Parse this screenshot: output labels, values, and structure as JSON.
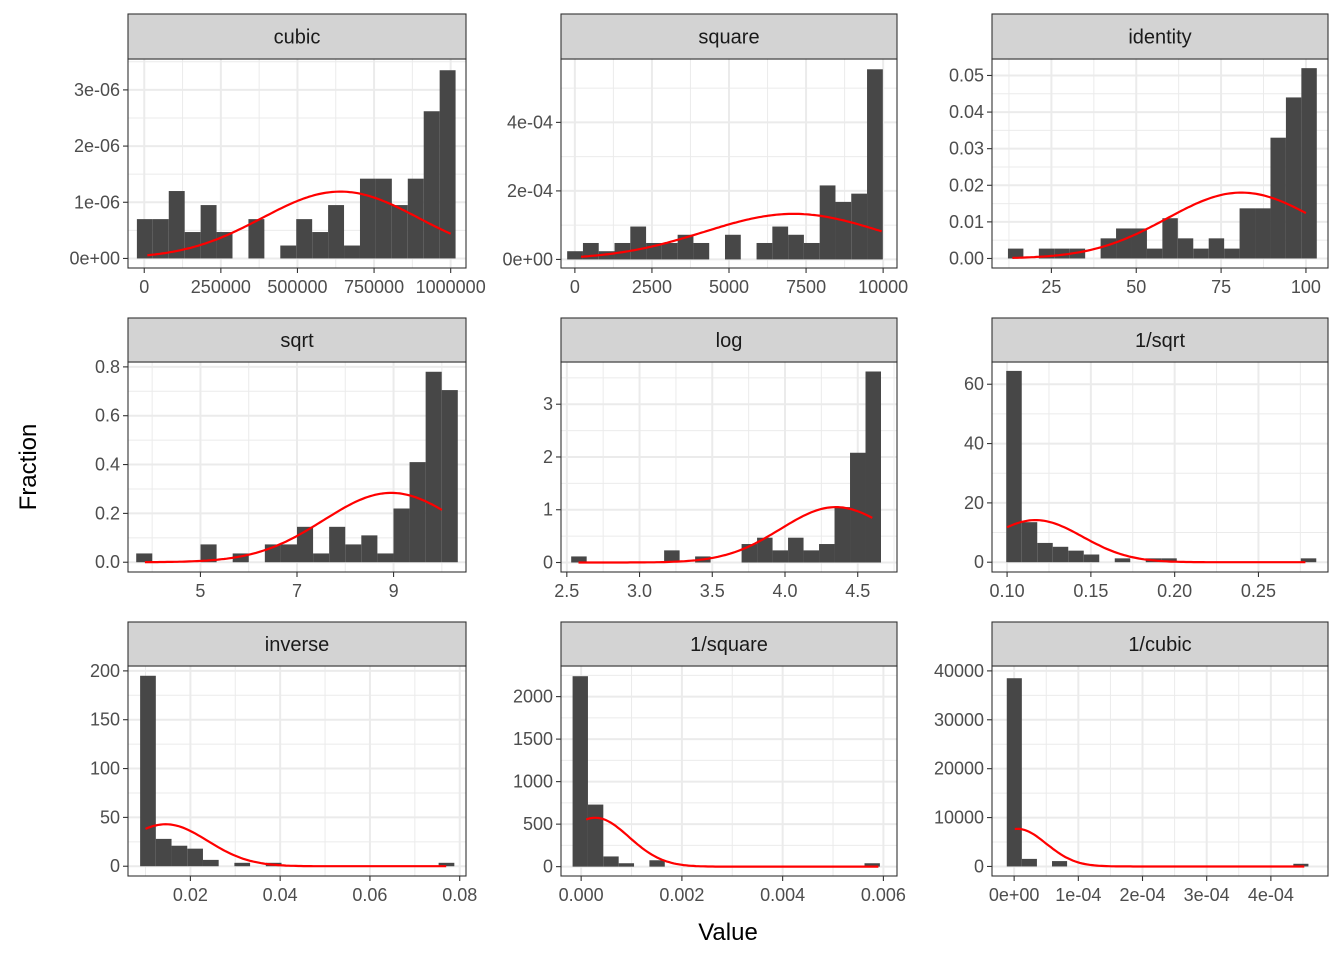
{
  "chart_data": {
    "type": "bar",
    "subtype": "faceted-histogram-with-density",
    "xlabel": "Value",
    "ylabel": "Fraction",
    "grid": true,
    "colors": {
      "bar": "#474747",
      "density": "#ff0000",
      "strip": "#d3d3d3",
      "grid": "#ebebeb"
    },
    "panels": [
      {
        "title": "cubic",
        "xlim": [
          -53000,
          1050000
        ],
        "ylim": [
          -1.7e-07,
          3.55e-06
        ],
        "xticks": [
          0,
          250000,
          500000,
          750000,
          1000000
        ],
        "xtick_labels": [
          "0",
          "250000",
          "500000",
          "750000",
          "1000000"
        ],
        "yticks": [
          0,
          1e-06,
          2e-06,
          3e-06
        ],
        "ytick_labels": [
          "0e+00",
          "1e-06",
          "2e-06",
          "3e-06"
        ],
        "bin_start": -24000,
        "bin_width": 52000,
        "values": [
          7e-07,
          7e-07,
          1.2e-06,
          4.7e-07,
          9.5e-07,
          4.7e-07,
          0,
          7e-07,
          0,
          2.3e-07,
          7e-07,
          4.7e-07,
          9.5e-07,
          2.3e-07,
          1.42e-06,
          1.42e-06,
          9.5e-07,
          1.42e-06,
          2.62e-06,
          3.35e-06
        ],
        "density": {
          "mean": 640000,
          "sd": 255000,
          "peak": 1.19e-06,
          "x_range": [
            10000,
            1000000
          ]
        }
      },
      {
        "title": "square",
        "xlim": [
          -450,
          10450
        ],
        "ylim": [
          -2.5e-05,
          0.000585
        ],
        "xticks": [
          0,
          2500,
          5000,
          7500,
          10000
        ],
        "xtick_labels": [
          "0",
          "2500",
          "5000",
          "7500",
          "10000"
        ],
        "yticks": [
          0,
          0.0002,
          0.0004
        ],
        "ytick_labels": [
          "0e+00",
          "2e-04",
          "4e-04"
        ],
        "bin_start": -250,
        "bin_width": 512,
        "values": [
          2.4e-05,
          4.8e-05,
          2.4e-05,
          4.8e-05,
          9.6e-05,
          4.8e-05,
          4.8e-05,
          7.2e-05,
          4.8e-05,
          0,
          7.2e-05,
          0,
          4.8e-05,
          9.6e-05,
          7.2e-05,
          4.8e-05,
          0.000216,
          0.000168,
          0.000192,
          0.000555
        ],
        "density": {
          "mean": 7100,
          "sd": 2900,
          "peak": 0.000133,
          "x_range": [
            200,
            9950
          ]
        }
      },
      {
        "title": "identity",
        "xlim": [
          7.5,
          106.5
        ],
        "ylim": [
          -0.0026,
          0.0545
        ],
        "xticks": [
          25,
          50,
          75,
          100
        ],
        "xtick_labels": [
          "25",
          "50",
          "75",
          "100"
        ],
        "yticks": [
          0,
          0.01,
          0.02,
          0.03,
          0.04,
          0.05
        ],
        "ytick_labels": [
          "0.00",
          "0.01",
          "0.02",
          "0.03",
          "0.04",
          "0.05"
        ],
        "bin_start": 12.2,
        "bin_width": 4.55,
        "values": [
          0.0027,
          0,
          0.0027,
          0.0027,
          0.0027,
          0,
          0.0055,
          0.0082,
          0.0082,
          0.0027,
          0.011,
          0.0055,
          0.0027,
          0.0055,
          0.0027,
          0.0137,
          0.0137,
          0.033,
          0.044,
          0.052
        ],
        "density": {
          "mean": 81,
          "sd": 22,
          "peak": 0.018,
          "x_range": [
            13.5,
            100
          ]
        }
      },
      {
        "title": "sqrt",
        "xlim": [
          3.5,
          10.5
        ],
        "ylim": [
          -0.04,
          0.82
        ],
        "xticks": [
          5,
          7,
          9
        ],
        "xtick_labels": [
          "5",
          "7",
          "9"
        ],
        "yticks": [
          0,
          0.2,
          0.4,
          0.6,
          0.8
        ],
        "ytick_labels": [
          "0.0",
          "0.2",
          "0.4",
          "0.6",
          "0.8"
        ],
        "bin_start": 3.67,
        "bin_width": 0.333,
        "values": [
          0.036,
          0,
          0,
          0,
          0.073,
          0,
          0.036,
          0,
          0.073,
          0.073,
          0.145,
          0.036,
          0.145,
          0.073,
          0.11,
          0.036,
          0.22,
          0.41,
          0.78,
          0.705
        ],
        "density": {
          "mean": 8.95,
          "sd": 1.4,
          "peak": 0.284,
          "x_range": [
            3.85,
            10.0
          ]
        }
      },
      {
        "title": "log",
        "xlim": [
          2.46,
          4.77
        ],
        "ylim": [
          -0.18,
          3.8
        ],
        "xticks": [
          2.5,
          3.0,
          3.5,
          4.0,
          4.5
        ],
        "xtick_labels": [
          "2.5",
          "3.0",
          "3.5",
          "4.0",
          "4.5"
        ],
        "yticks": [
          0,
          1,
          2,
          3
        ],
        "ytick_labels": [
          "0",
          "1",
          "2",
          "3"
        ],
        "bin_start": 2.53,
        "bin_width": 0.1065,
        "values": [
          0.115,
          0,
          0,
          0,
          0,
          0,
          0.23,
          0,
          0.115,
          0,
          0,
          0.35,
          0.47,
          0.23,
          0.47,
          0.23,
          0.35,
          1.05,
          2.08,
          3.62
        ],
        "density": {
          "mean": 4.35,
          "sd": 0.38,
          "peak": 1.05,
          "x_range": [
            2.58,
            4.6
          ]
        }
      },
      {
        "title": "1/sqrt",
        "xlim": [
          0.091,
          0.2915
        ],
        "ylim": [
          -3.3,
          67.5
        ],
        "xticks": [
          0.1,
          0.15,
          0.2,
          0.25
        ],
        "xtick_labels": [
          "0.10",
          "0.15",
          "0.20",
          "0.25"
        ],
        "yticks": [
          0,
          20,
          40,
          60
        ],
        "ytick_labels": [
          "0",
          "20",
          "40",
          "60"
        ],
        "bin_start": 0.0995,
        "bin_width": 0.00925,
        "values": [
          64.5,
          13.5,
          6.5,
          5.2,
          3.9,
          2.6,
          0,
          1.3,
          0,
          1.3,
          1.3,
          0,
          0,
          0,
          0,
          0,
          0,
          0,
          0,
          1.3
        ],
        "density": {
          "mean": 0.117,
          "sd": 0.028,
          "peak": 14.2,
          "x_range": [
            0.1,
            0.278
          ]
        }
      },
      {
        "title": "inverse",
        "xlim": [
          0.0061,
          0.0814
        ],
        "ylim": [
          -10,
          205
        ],
        "xticks": [
          0.02,
          0.04,
          0.06,
          0.08
        ],
        "xtick_labels": [
          "0.02",
          "0.04",
          "0.06",
          "0.08"
        ],
        "yticks": [
          0,
          50,
          100,
          150,
          200
        ],
        "ytick_labels": [
          "0",
          "50",
          "100",
          "150",
          "200"
        ],
        "bin_start": 0.0088,
        "bin_width": 0.0035,
        "values": [
          195,
          28,
          21,
          18,
          6.5,
          0,
          3.5,
          0,
          3.5,
          0,
          0,
          0,
          0,
          0,
          0,
          0,
          0,
          0,
          0,
          3.5
        ],
        "density": {
          "mean": 0.0145,
          "sd": 0.0093,
          "peak": 43,
          "x_range": [
            0.01,
            0.077
          ]
        }
      },
      {
        "title": "1/square",
        "xlim": [
          -0.0004,
          0.00627
        ],
        "ylim": [
          -110,
          2360
        ],
        "xticks": [
          0,
          0.002,
          0.004,
          0.006
        ],
        "xtick_labels": [
          "0.000",
          "0.002",
          "0.004",
          "0.006"
        ],
        "yticks": [
          0,
          500,
          1000,
          1500,
          2000
        ],
        "ytick_labels": [
          "0",
          "500",
          "1000",
          "1500",
          "2000"
        ],
        "bin_start": -0.00017,
        "bin_width": 0.000305,
        "values": [
          2240,
          730,
          120,
          40,
          0,
          75,
          0,
          0,
          0,
          0,
          0,
          0,
          0,
          0,
          0,
          0,
          0,
          0,
          0,
          40
        ],
        "density": {
          "mean": 0.00028,
          "sd": 0.00067,
          "peak": 575,
          "x_range": [
            0.0001,
            0.0059
          ]
        }
      },
      {
        "title": "1/cubic",
        "xlim": [
          -3.45e-05,
          0.000489
        ],
        "ylim": [
          -1950,
          41000
        ],
        "xticks": [
          0,
          0.0001,
          0.0002,
          0.0003,
          0.0004
        ],
        "xtick_labels": [
          "0e+00",
          "1e-04",
          "2e-04",
          "3e-04",
          "4e-04"
        ],
        "yticks": [
          0,
          10000,
          20000,
          30000,
          40000
        ],
        "ytick_labels": [
          "0",
          "10000",
          "20000",
          "30000",
          "40000"
        ],
        "bin_start": -1.15e-05,
        "bin_width": 2.35e-05,
        "values": [
          38500,
          1550,
          0,
          1100,
          0,
          0,
          0,
          0,
          0,
          0,
          0,
          0,
          0,
          0,
          0,
          0,
          0,
          0,
          0,
          550
        ],
        "density": {
          "mean": 5e-06,
          "sd": 4.5e-05,
          "peak": 7700,
          "x_range": [
            1e-06,
            0.000452
          ]
        }
      }
    ]
  }
}
